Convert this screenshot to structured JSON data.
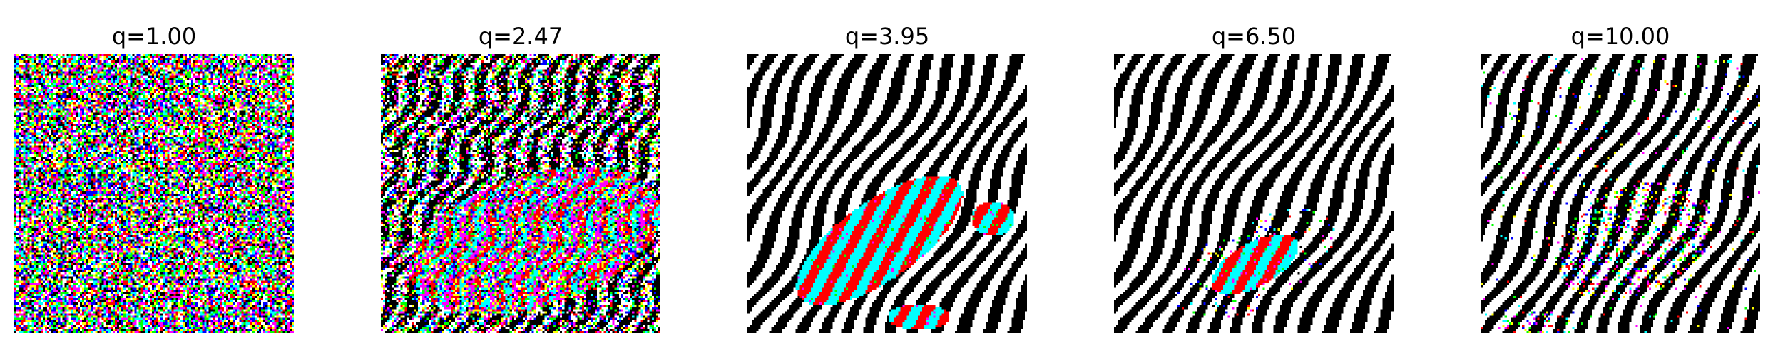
{
  "chart_data": [
    {
      "type": "heatmap",
      "title": "q=1.00",
      "q": 1.0,
      "grid_size": 128
    },
    {
      "type": "heatmap",
      "title": "q=2.47",
      "q": 2.47,
      "grid_size": 128
    },
    {
      "type": "heatmap",
      "title": "q=3.95",
      "q": 3.95,
      "grid_size": 128
    },
    {
      "type": "heatmap",
      "title": "q=6.50",
      "q": 6.5,
      "grid_size": 128
    },
    {
      "type": "heatmap",
      "title": "q=10.00",
      "q": 10.0,
      "grid_size": 128
    }
  ],
  "palette": [
    "#ffffff",
    "#000000",
    "#ff0000",
    "#00ffff",
    "#00ff00",
    "#ff00ff",
    "#0000ff",
    "#ffff00"
  ]
}
